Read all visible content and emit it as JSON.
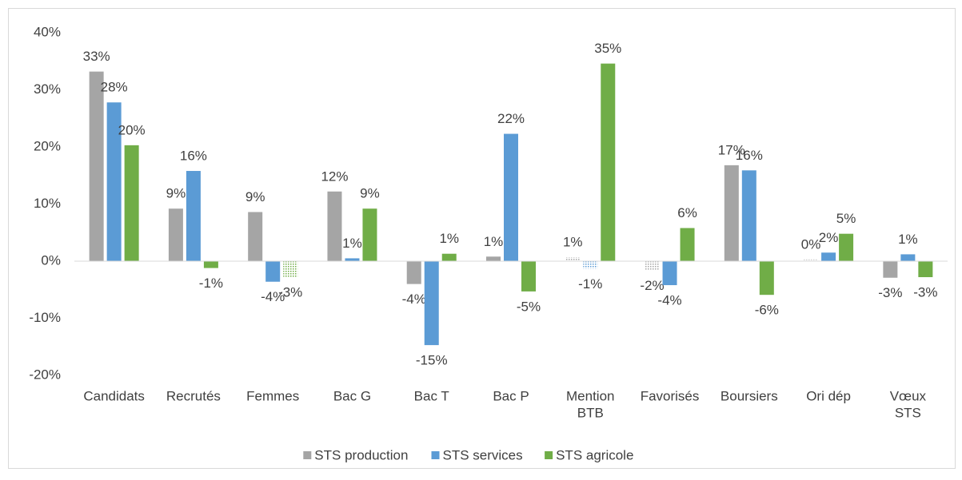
{
  "chart_data": {
    "type": "bar",
    "categories": [
      "Candidats",
      "Recrutés",
      "Femmes",
      "Bac G",
      "Bac T",
      "Bac P",
      [
        "Mention",
        "BTB"
      ],
      "Favorisés",
      "Boursiers",
      "Ori dép",
      [
        "Vœux",
        "STS"
      ]
    ],
    "series": [
      {
        "name": "STS production",
        "color": "#a5a5a5",
        "values": [
          33.2,
          9.2,
          8.6,
          12.2,
          -4,
          0.8,
          0.7,
          -1.6,
          16.8,
          0.3,
          -2.9
        ],
        "value_labels": [
          "33%",
          "9%",
          "9%",
          "12%",
          "-4%",
          "1%",
          "1%",
          "-2%",
          "17%",
          "0%",
          "-3%"
        ],
        "pattern": [
          false,
          false,
          false,
          false,
          false,
          false,
          true,
          true,
          false,
          true,
          false
        ]
      },
      {
        "name": "STS services",
        "color": "#5b9bd5",
        "values": [
          27.8,
          15.8,
          -3.6,
          0.5,
          -14.7,
          22.3,
          -1.3,
          -4.2,
          15.9,
          1.5,
          1.2
        ],
        "value_labels": [
          "28%",
          "16%",
          "-4%",
          "1%",
          "-15%",
          "22%",
          "-1%",
          "-4%",
          "16%",
          "2%",
          "1%"
        ],
        "pattern": [
          false,
          false,
          false,
          false,
          false,
          false,
          true,
          false,
          false,
          false,
          false
        ]
      },
      {
        "name": "STS agricole",
        "color": "#70ad47",
        "values": [
          20.3,
          -1.2,
          -2.8,
          9.2,
          1.3,
          -5.3,
          34.6,
          5.8,
          -5.9,
          4.8,
          -2.8
        ],
        "value_labels": [
          "20%",
          "-1%",
          "-3%",
          "9%",
          "1%",
          "-5%",
          "35%",
          "6%",
          "-6%",
          "5%",
          "-3%"
        ],
        "pattern": [
          false,
          false,
          true,
          false,
          false,
          false,
          false,
          false,
          false,
          false,
          false
        ]
      }
    ],
    "ylim": [
      -20,
      40
    ],
    "yticks": [
      {
        "value": -20,
        "label": "-20%"
      },
      {
        "value": -10,
        "label": "-10%"
      },
      {
        "value": 0,
        "label": "0%"
      },
      {
        "value": 10,
        "label": "10%"
      },
      {
        "value": 20,
        "label": "20%"
      },
      {
        "value": 30,
        "label": "30%"
      },
      {
        "value": 40,
        "label": "40%"
      }
    ],
    "grid": false,
    "legend": "bottom"
  }
}
